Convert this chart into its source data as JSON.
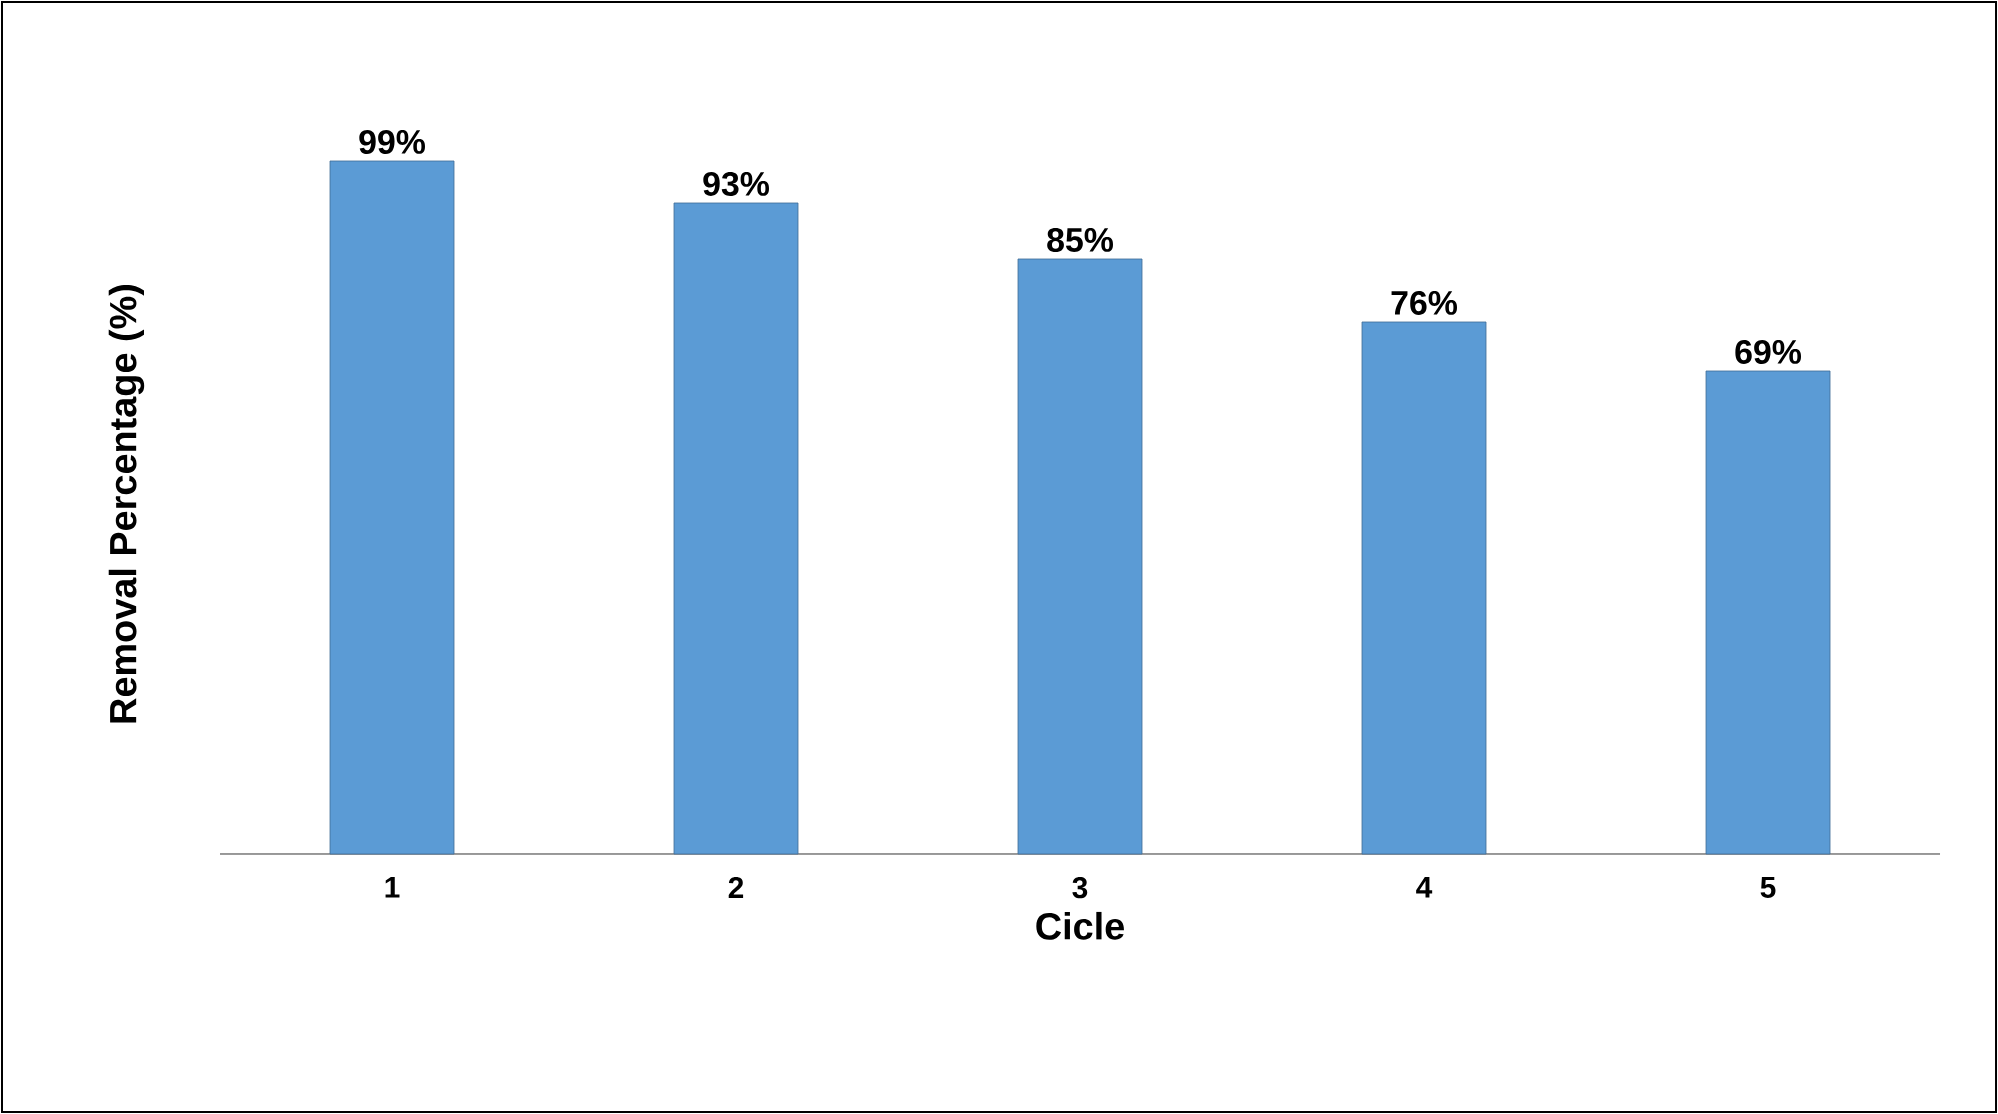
{
  "chart_data": {
    "type": "bar",
    "xlabel": "Cicle",
    "ylabel": "Removal Percentage (%)",
    "categories": [
      "1",
      "2",
      "3",
      "4",
      "5"
    ],
    "values": [
      99,
      93,
      85,
      76,
      69
    ],
    "value_labels": [
      "99%",
      "93%",
      "85%",
      "76%",
      "69%"
    ],
    "color": "#5b9bd5",
    "ylim": [
      0,
      100
    ],
    "tick_labels": "x"
  }
}
